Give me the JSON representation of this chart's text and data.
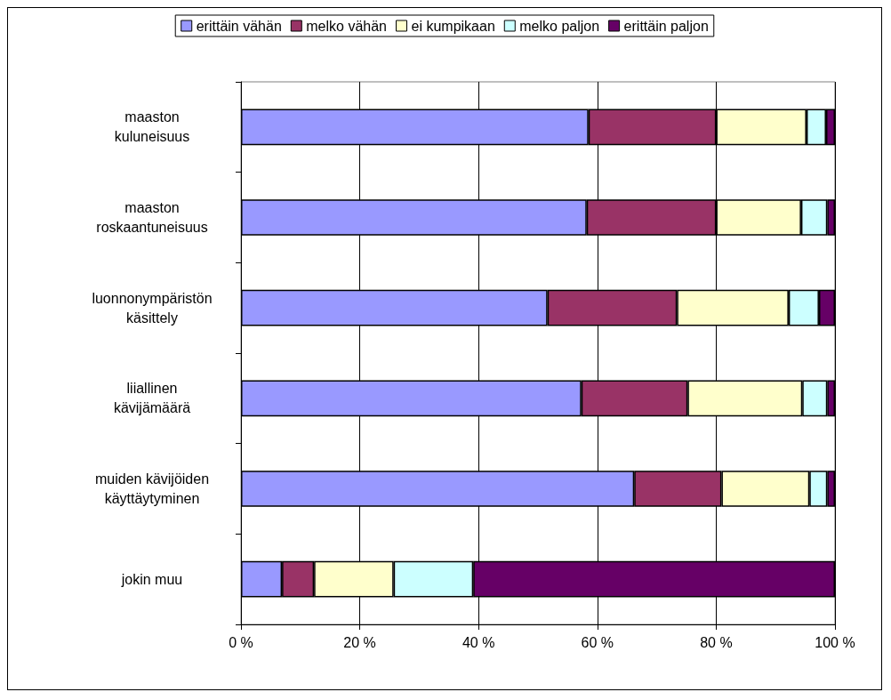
{
  "chart_data": {
    "type": "bar",
    "orientation": "horizontal",
    "stacked": true,
    "categories": [
      "maaston\nkuluneisuus",
      "maaston\nroskaantuneisuus",
      "luonnonympäristön\nkäsittely",
      "liiallinen\nkävijämäärä",
      "muiden kävijöiden\nkäyttäytyminen",
      "jokin muu"
    ],
    "series": [
      {
        "name": "erittäin vähän",
        "color": "#9999ff",
        "values": [
          58.5,
          58.2,
          51.6,
          57.3,
          66.2,
          6.9
        ]
      },
      {
        "name": "melko vähän",
        "color": "#993366",
        "values": [
          21.5,
          21.8,
          21.8,
          17.9,
          14.7,
          5.4
        ]
      },
      {
        "name": "ei kumpikaan",
        "color": "#ffffcc",
        "values": [
          15.2,
          14.3,
          18.8,
          19.3,
          14.8,
          13.4
        ]
      },
      {
        "name": "melko paljon",
        "color": "#ccffff",
        "values": [
          3.3,
          4.4,
          5.1,
          4.2,
          3.0,
          13.4
        ]
      },
      {
        "name": "erittäin paljon",
        "color": "#660066",
        "values": [
          1.5,
          1.3,
          2.7,
          1.3,
          1.3,
          60.9
        ]
      }
    ],
    "xlim": [
      0,
      100
    ],
    "xticks": [
      {
        "value": 0,
        "label": "0 %"
      },
      {
        "value": 20,
        "label": "20 %"
      },
      {
        "value": 40,
        "label": "40 %"
      },
      {
        "value": 60,
        "label": "60 %"
      },
      {
        "value": 80,
        "label": "80 %"
      },
      {
        "value": 100,
        "label": "100 %"
      }
    ],
    "grid": "x",
    "legend": "top"
  }
}
